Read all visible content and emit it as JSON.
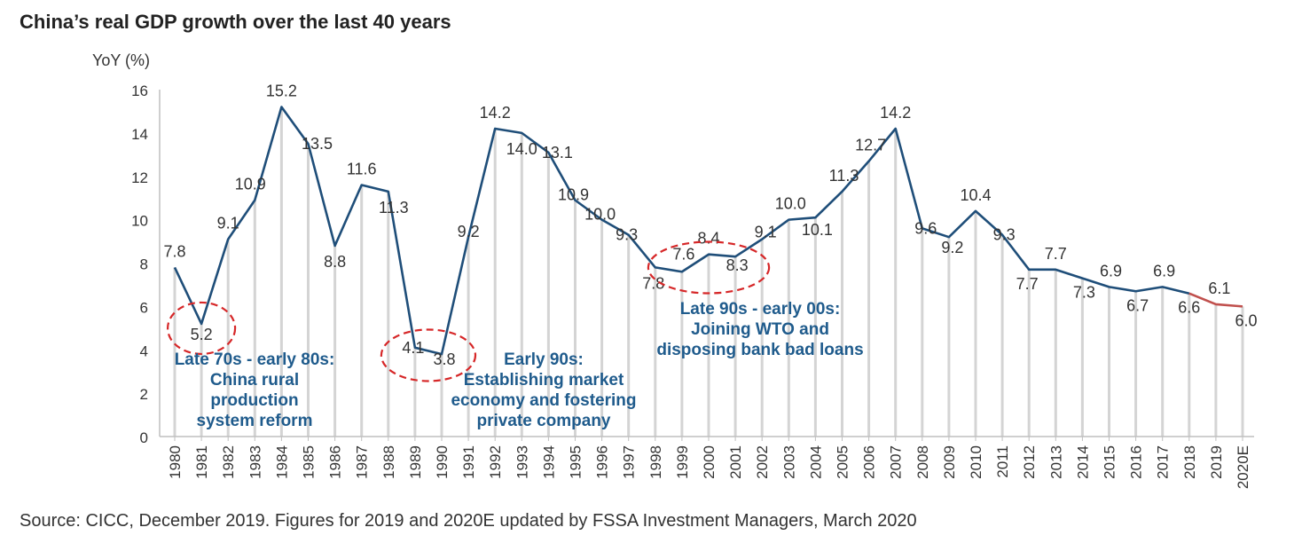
{
  "title": "China’s real GDP growth over the last 40 years",
  "source": "Source: CICC, December 2019. Figures for 2019 and 2020E updated by FSSA Investment Managers, March 2020",
  "colors": {
    "line": "#1f4e79",
    "estimate_line": "#c0504d",
    "drop_lines": "#d4d4d4",
    "annotation_text": "#1f5b8c",
    "circle": "#d62728"
  },
  "chart_data": {
    "type": "line",
    "title": "China’s real GDP growth over the last 40 years",
    "ylabel": "YoY (%)",
    "xlabel": "",
    "ylim": [
      0,
      16
    ],
    "yticks": [
      0,
      2,
      4,
      6,
      8,
      10,
      12,
      14,
      16
    ],
    "grid": false,
    "categories": [
      "1980",
      "1981",
      "1982",
      "1983",
      "1984",
      "1985",
      "1986",
      "1987",
      "1988",
      "1989",
      "1990",
      "1991",
      "1992",
      "1993",
      "1994",
      "1995",
      "1996",
      "1997",
      "1998",
      "1999",
      "2000",
      "2001",
      "2002",
      "2003",
      "2004",
      "2005",
      "2006",
      "2007",
      "2008",
      "2009",
      "2010",
      "2011",
      "2012",
      "2013",
      "2014",
      "2015",
      "2016",
      "2017",
      "2018",
      "2019",
      "2020E"
    ],
    "series": [
      {
        "values": [
          7.8,
          5.2,
          9.1,
          10.9,
          15.2,
          13.5,
          8.8,
          11.6,
          11.3,
          4.1,
          3.8,
          9.2,
          14.2,
          14.0,
          13.1,
          10.9,
          10.0,
          9.3,
          7.8,
          7.6,
          8.4,
          8.3,
          9.1,
          10.0,
          10.1,
          11.3,
          12.7,
          14.2,
          9.6,
          9.2,
          10.4,
          9.3,
          7.7,
          7.7,
          7.3,
          6.9,
          6.7,
          6.9,
          6.6,
          6.1,
          6.0
        ],
        "labels": [
          "7.8",
          "5.2",
          "9.1",
          "10.9",
          "15.2",
          "13.5",
          "8.8",
          "11.6",
          "11.3",
          "4.1",
          "3.8",
          "9.2",
          "14.2",
          "14.0",
          "13.1",
          "10.9",
          "10.0",
          "9.3",
          "7.8",
          "7.6",
          "8.4",
          "8.3",
          "9.1",
          "10.0",
          "10.1",
          "11.3",
          "12.7",
          "14.2",
          "9.6",
          "9.2",
          "10.4",
          "9.3",
          "7.7",
          "7.7",
          "7.3",
          "6.9",
          "6.7",
          "6.9",
          "6.6",
          "6.1",
          "6.0"
        ]
      }
    ],
    "annotations": [
      {
        "lines": [
          "Late 70s - early 80s:",
          "China rural",
          "production",
          "system reform"
        ]
      },
      {
        "lines": [
          "Early 90s:",
          "Establishing market",
          "economy and fostering",
          "private company"
        ]
      },
      {
        "lines": [
          "Late 90s - early 00s:",
          "Joining WTO and",
          "disposing bank bad loans"
        ]
      }
    ],
    "highlighted_years": [
      [
        "1981"
      ],
      [
        "1989",
        "1990"
      ],
      [
        "1999",
        "2000",
        "2001"
      ]
    ]
  }
}
